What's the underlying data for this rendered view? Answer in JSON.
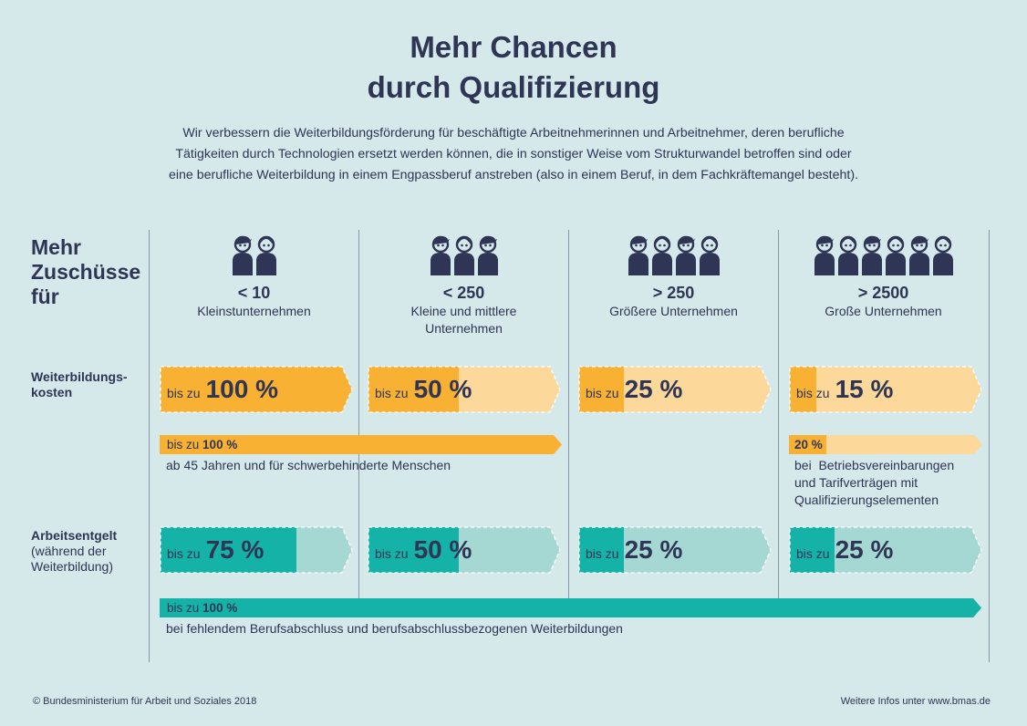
{
  "title": {
    "line1": "Mehr Chancen",
    "line2": "durch Qualifizierung"
  },
  "intro": {
    "line1": "Wir verbessern die Weiterbildungsförderung für beschäftigte Arbeitnehmerinnen und Arbeitnehmer, deren berufliche",
    "line2": "Tätigkeiten durch Technologien ersetzt werden können, die in sonstiger Weise vom Strukturwandel betroffen sind oder",
    "line3": "eine berufliche Weiterbildung in einem Engpassberuf anstreben (also in einem Beruf, in dem Fachkräftemangel besteht)."
  },
  "side_heading": {
    "line1": "Mehr",
    "line2": "Zuschüsse",
    "line3": "für"
  },
  "columns": [
    {
      "count": "< 10",
      "label_line1": "Kleinstunternehmen",
      "label_line2": "",
      "people": 2,
      "icon": "people-icon"
    },
    {
      "count": "< 250",
      "label_line1": "Kleine und mittlere",
      "label_line2": "Unternehmen",
      "people": 3,
      "icon": "people-icon"
    },
    {
      "count": "> 250",
      "label_line1": "Größere Unternehmen",
      "label_line2": "",
      "people": 4,
      "icon": "people-icon"
    },
    {
      "count": "> 2500",
      "label_line1": "Große Unternehmen",
      "label_line2": "",
      "people": 6,
      "icon": "people-icon"
    }
  ],
  "rows": {
    "weiterbildungskosten": {
      "label_line1": "Weiterbildungs-",
      "label_line2": "kosten",
      "cells": [
        {
          "prefix": "bis zu",
          "value": "100 %",
          "fraction": 1.0
        },
        {
          "prefix": "bis zu",
          "value": "50 %",
          "fraction": 0.5
        },
        {
          "prefix": "bis zu",
          "value": "25 %",
          "fraction": 0.25
        },
        {
          "prefix": "bis zu",
          "value": "15 %",
          "fraction": 0.15
        }
      ],
      "extra_strip": {
        "prefix": "bis zu",
        "value": "100 %",
        "note": "ab 45 Jahren und für schwerbehinderte Menschen",
        "fraction": 1.0
      },
      "extra_strip_large": {
        "value": "20 %",
        "note_line1": "bei  Betriebsvereinbarungen",
        "note_line2": "und Tarifverträgen mit",
        "note_line3": "Qualifizierungselementen",
        "fraction": 0.2
      }
    },
    "arbeitsentgelt": {
      "label_line1": "Arbeitsentgelt",
      "label_line2": "(während der",
      "label_line3": "Weiterbildung)",
      "cells": [
        {
          "prefix": "bis zu",
          "value": "75 %",
          "fraction": 0.75
        },
        {
          "prefix": "bis zu",
          "value": "50 %",
          "fraction": 0.5
        },
        {
          "prefix": "bis zu",
          "value": "25 %",
          "fraction": 0.25
        },
        {
          "prefix": "bis zu",
          "value": "25 %",
          "fraction": 0.25
        }
      ],
      "extra_strip": {
        "prefix": "bis zu",
        "value": "100 %",
        "note": "bei fehlendem Berufsabschluss und berufsabschlussbezogenen Weiterbildungen",
        "fraction": 1.0
      }
    }
  },
  "colors": {
    "background": "#d5e8ea",
    "text": "#2f3554",
    "orange": "#f8b133",
    "orange_light": "#fcd89a",
    "teal": "#14b2a7",
    "teal_light": "#a6d8d3",
    "divider": "#8a97a8"
  },
  "footer": {
    "left": "© Bundesministerium für Arbeit und Soziales 2018",
    "right": "Weitere Infos unter www.bmas.de"
  }
}
